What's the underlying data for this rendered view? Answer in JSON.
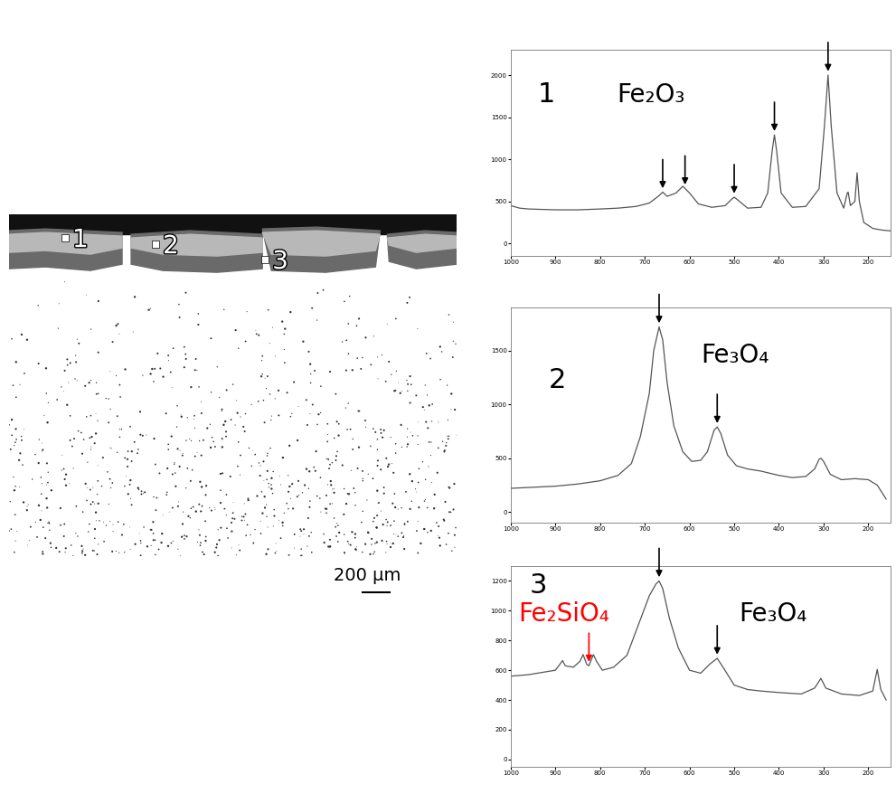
{
  "micrograph": {
    "points": [
      "1",
      "2",
      "3"
    ],
    "scale_bar": "200 μm"
  },
  "chart_data": [
    {
      "type": "line",
      "label": "1",
      "color": "#555555",
      "x": [
        1000,
        980,
        960,
        900,
        850,
        800,
        760,
        720,
        690,
        670,
        660,
        650,
        630,
        615,
        600,
        580,
        550,
        520,
        505,
        500,
        495,
        470,
        440,
        425,
        415,
        410,
        405,
        395,
        370,
        340,
        310,
        298,
        290,
        283,
        270,
        255,
        247,
        245,
        240,
        230,
        225,
        220,
        210,
        190,
        170,
        150
      ],
      "values": [
        450,
        420,
        410,
        400,
        400,
        410,
        420,
        440,
        480,
        560,
        610,
        560,
        600,
        680,
        600,
        470,
        430,
        450,
        530,
        550,
        530,
        420,
        430,
        600,
        1100,
        1290,
        1100,
        600,
        430,
        440,
        650,
        1400,
        2000,
        1400,
        600,
        420,
        600,
        610,
        450,
        500,
        840,
        500,
        250,
        180,
        160,
        150
      ],
      "xlim": [
        1000,
        150
      ],
      "xticks": [
        1000,
        900,
        800,
        700,
        600,
        500,
        400,
        300,
        200
      ],
      "ylim": [
        -150,
        2300
      ],
      "yticks": [
        0,
        500,
        1000,
        1500,
        2000
      ],
      "annotations": [
        {
          "text": "Fe₂O₃",
          "color": "#000000",
          "peaks": [
            660,
            610,
            500,
            410,
            290
          ]
        }
      ]
    },
    {
      "type": "line",
      "label": "2",
      "color": "#555555",
      "x": [
        1000,
        950,
        900,
        850,
        800,
        760,
        730,
        710,
        690,
        680,
        668,
        660,
        650,
        635,
        615,
        595,
        575,
        560,
        545,
        538,
        530,
        515,
        495,
        470,
        440,
        400,
        370,
        340,
        320,
        310,
        306,
        300,
        285,
        260,
        230,
        200,
        180,
        160
      ],
      "values": [
        220,
        230,
        240,
        260,
        290,
        340,
        450,
        700,
        1100,
        1500,
        1720,
        1600,
        1200,
        800,
        560,
        470,
        480,
        560,
        760,
        790,
        730,
        530,
        430,
        400,
        380,
        340,
        320,
        330,
        400,
        490,
        500,
        470,
        350,
        300,
        310,
        300,
        250,
        120
      ],
      "xlim": [
        1000,
        150
      ],
      "xticks": [
        1000,
        900,
        800,
        700,
        600,
        500,
        400,
        300,
        200
      ],
      "ylim": [
        -100,
        1900
      ],
      "yticks": [
        0,
        500,
        1000,
        1500
      ],
      "annotations": [
        {
          "text": "Fe₃O₄",
          "color": "#000000",
          "peaks": [
            668,
            538
          ]
        }
      ]
    },
    {
      "type": "line",
      "label": "3",
      "color": "#555555",
      "x": [
        1000,
        960,
        920,
        900,
        890,
        884,
        878,
        860,
        845,
        838,
        830,
        825,
        815,
        808,
        795,
        770,
        740,
        715,
        690,
        675,
        668,
        660,
        645,
        625,
        600,
        575,
        555,
        538,
        525,
        500,
        470,
        440,
        400,
        350,
        320,
        306,
        295,
        260,
        220,
        190,
        180,
        172,
        160
      ],
      "values": [
        560,
        570,
        590,
        600,
        640,
        665,
        630,
        620,
        660,
        705,
        640,
        630,
        705,
        660,
        600,
        620,
        700,
        900,
        1100,
        1180,
        1200,
        1150,
        950,
        750,
        600,
        580,
        640,
        680,
        620,
        500,
        470,
        460,
        450,
        440,
        480,
        545,
        480,
        440,
        430,
        460,
        605,
        470,
        400
      ],
      "xlim": [
        1000,
        150
      ],
      "xticks": [
        1000,
        900,
        800,
        700,
        600,
        500,
        400,
        300,
        200
      ],
      "ylim": [
        -50,
        1300
      ],
      "yticks": [
        0,
        200,
        400,
        600,
        800,
        1000,
        1200
      ],
      "annotations": [
        {
          "text": "Fe₃O₄",
          "color": "#000000",
          "peaks": [
            668,
            538
          ]
        },
        {
          "text": "Fe₂SiO₄",
          "color": "#ff0000",
          "peaks": [
            825
          ]
        }
      ]
    }
  ]
}
